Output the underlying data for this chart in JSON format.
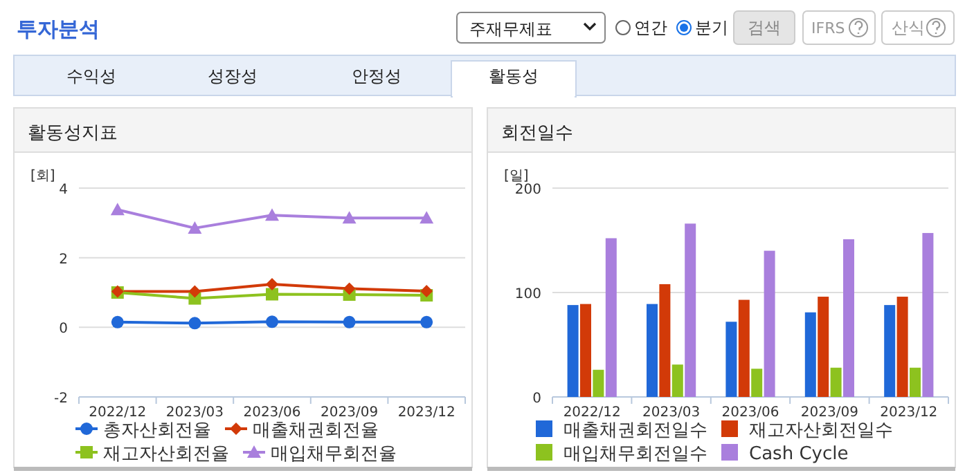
{
  "chart_data": [
    {
      "type": "other",
      "title": "투자분석",
      "annotations": [
        "주재무제표",
        "연간",
        "분기",
        "검색",
        "IFRS",
        "산식",
        "수익성",
        "성장성",
        "안정성",
        "활동성"
      ]
    },
    {
      "type": "line",
      "title": "활동성지표",
      "ylabel": "[회]",
      "categories": [
        "2022/12",
        "2023/03",
        "2023/06",
        "2023/09",
        "2023/12"
      ],
      "ylim": [
        -2,
        4
      ],
      "yticks": [
        -2,
        0,
        2,
        4
      ],
      "grid": "y",
      "legend": "bottom",
      "series": [
        {
          "name": "총자산회전율",
          "color": "#2068d8",
          "marker": "circle",
          "values": [
            0.15,
            0.12,
            0.16,
            0.15,
            0.15
          ]
        },
        {
          "name": "매출채권회전율",
          "color": "#d23a08",
          "marker": "diamond",
          "values": [
            1.03,
            1.03,
            1.24,
            1.11,
            1.04
          ]
        },
        {
          "name": "재고자산회전율",
          "color": "#8dc21f",
          "marker": "square",
          "values": [
            1.0,
            0.83,
            0.95,
            0.94,
            0.92
          ]
        },
        {
          "name": "매입채무회전율",
          "color": "#a97fdd",
          "marker": "triangle",
          "values": [
            3.38,
            2.85,
            3.22,
            3.14,
            3.14
          ]
        }
      ]
    },
    {
      "type": "bar",
      "title": "회전일수",
      "ylabel": "[일]",
      "categories": [
        "2022/12",
        "2023/03",
        "2023/06",
        "2023/09",
        "2023/12"
      ],
      "ylim": [
        0,
        200
      ],
      "yticks": [
        0,
        100,
        200
      ],
      "grid": "y",
      "legend": "bottom",
      "series": [
        {
          "name": "매출채권회전일수",
          "color": "#2068d8",
          "values": [
            88,
            89,
            72,
            81,
            88
          ]
        },
        {
          "name": "재고자산회전일수",
          "color": "#d23a08",
          "values": [
            89,
            108,
            93,
            96,
            96
          ]
        },
        {
          "name": "매입채무회전일수",
          "color": "#8dc21f",
          "values": [
            26,
            31,
            27,
            28,
            28
          ]
        },
        {
          "name": "Cash Cycle",
          "color": "#a97fdd",
          "values": [
            152,
            166,
            140,
            151,
            157
          ]
        }
      ]
    }
  ]
}
